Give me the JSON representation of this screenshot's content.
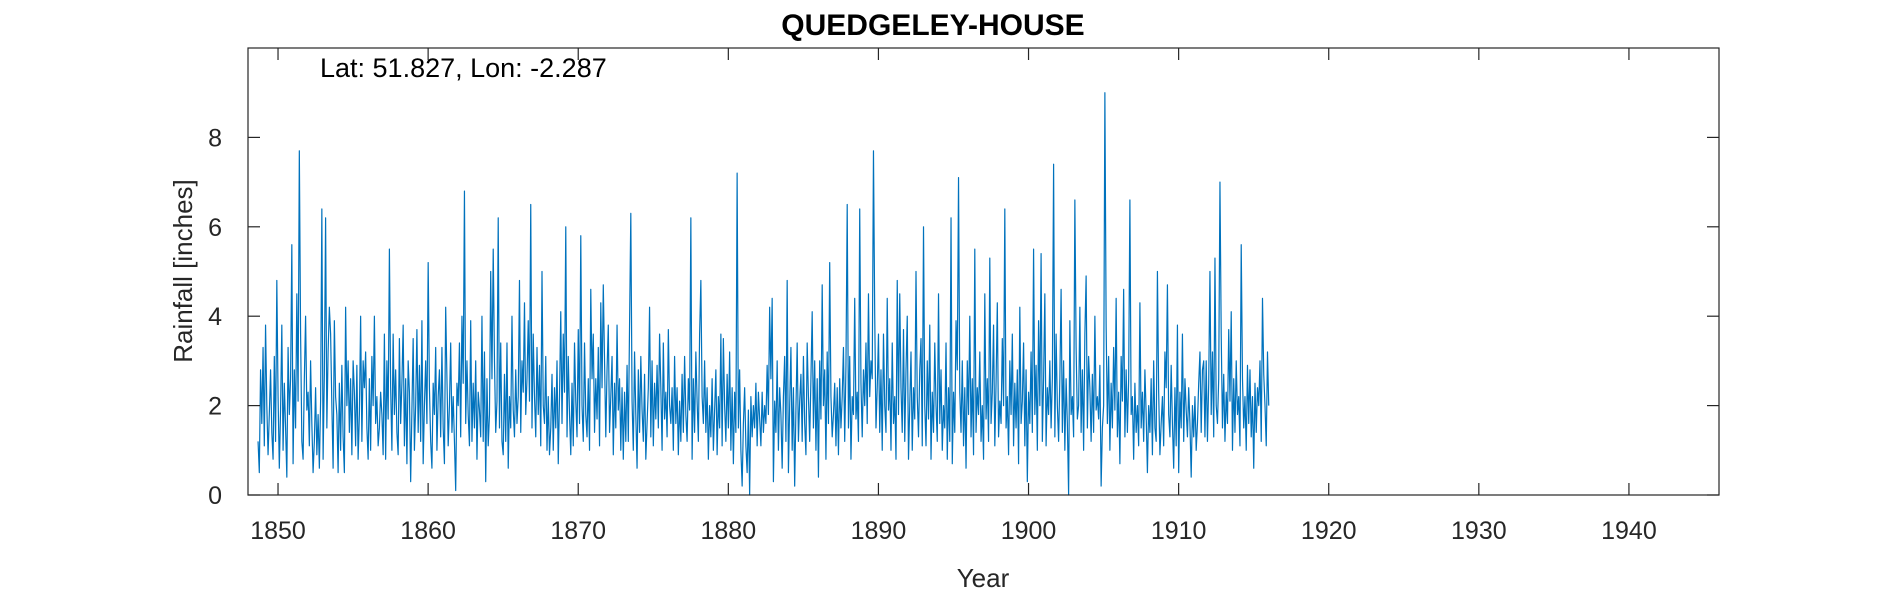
{
  "chart_data": {
    "type": "line",
    "title": "QUEDGELEY-HOUSE",
    "xlabel": "Year",
    "ylabel": "Rainfall [inches]",
    "annotation": "Lat: 51.827, Lon: -2.287",
    "xlim": [
      1848,
      1946
    ],
    "ylim": [
      0,
      10
    ],
    "xticks": [
      1850,
      1860,
      1870,
      1880,
      1890,
      1900,
      1910,
      1920,
      1930,
      1940
    ],
    "yticks": [
      0,
      2,
      4,
      6,
      8
    ],
    "grid": false,
    "colors": {
      "series": "#0072BD",
      "axes": "#262626"
    },
    "series": [
      {
        "start_year": 1848.67,
        "step": 0.0833333,
        "values": [
          1.2,
          0.5,
          2.8,
          1.6,
          3.3,
          1.1,
          3.8,
          2.0,
          0.9,
          1.8,
          2.8,
          1.4,
          0.8,
          3.1,
          1.2,
          4.8,
          2.2,
          0.6,
          1.9,
          3.8,
          1.0,
          2.5,
          1.5,
          0.4,
          3.3,
          1.8,
          2.6,
          5.6,
          0.7,
          2.8,
          1.5,
          4.5,
          2.1,
          7.7,
          3.6,
          1.2,
          0.8,
          2.6,
          4.0,
          1.9,
          2.3,
          1.1,
          3.0,
          1.6,
          0.5,
          1.2,
          2.4,
          0.9,
          1.8,
          0.6,
          2.1,
          6.4,
          0.8,
          2.7,
          6.2,
          1.5,
          3.2,
          4.2,
          3.6,
          2.0,
          0.6,
          3.9,
          2.2,
          1.8,
          0.5,
          2.5,
          1.0,
          2.9,
          1.3,
          0.5,
          4.2,
          2.0,
          3.0,
          1.4,
          2.6,
          0.9,
          3.0,
          2.3,
          1.1,
          2.9,
          0.8,
          1.8,
          4.0,
          1.2,
          3.0,
          2.4,
          3.2,
          1.5,
          0.8,
          2.6,
          1.0,
          3.1,
          2.0,
          4.0,
          1.6,
          2.2,
          1.1,
          1.5,
          2.3,
          1.8,
          0.9,
          3.6,
          0.8,
          3.0,
          1.7,
          5.5,
          2.4,
          1.0,
          3.6,
          1.8,
          2.8,
          1.4,
          0.9,
          3.5,
          1.6,
          2.5,
          3.8,
          1.1,
          2.6,
          0.7,
          3.0,
          2.3,
          0.3,
          1.9,
          3.5,
          1.0,
          2.0,
          3.7,
          1.4,
          2.9,
          1.2,
          3.9,
          0.7,
          2.0,
          3.0,
          1.6,
          5.2,
          2.4,
          1.2,
          0.6,
          2.5,
          1.8,
          3.3,
          1.0,
          2.2,
          2.8,
          1.3,
          3.3,
          1.5,
          0.7,
          4.2,
          2.6,
          1.1,
          2.0,
          3.4,
          1.4,
          2.2,
          1.2,
          0.1,
          2.5,
          2.0,
          3.4,
          1.3,
          4.0,
          2.5,
          6.8,
          1.6,
          3.0,
          1.8,
          1.1,
          3.9,
          1.2,
          2.5,
          1.5,
          3.0,
          0.8,
          2.3,
          1.9,
          1.3,
          4.0,
          1.2,
          3.2,
          0.3,
          2.6,
          1.1,
          1.8,
          5.0,
          2.6,
          5.5,
          3.0,
          1.4,
          2.1,
          6.2,
          1.5,
          3.4,
          1.2,
          0.9,
          2.7,
          1.2,
          3.4,
          0.6,
          2.2,
          1.5,
          4.0,
          1.9,
          1.3,
          2.8,
          1.6,
          2.2,
          4.8,
          1.4,
          3.0,
          2.3,
          4.3,
          1.8,
          2.6,
          3.9,
          2.1,
          6.5,
          1.5,
          3.6,
          2.2,
          1.3,
          3.3,
          1.8,
          2.9,
          1.1,
          5.0,
          2.0,
          1.6,
          3.1,
          1.0,
          2.2,
          0.9,
          1.5,
          2.7,
          1.0,
          2.4,
          1.5,
          3.0,
          0.7,
          2.2,
          4.1,
          1.6,
          3.6,
          2.3,
          6.0,
          1.3,
          3.1,
          1.8,
          0.9,
          2.5,
          1.1,
          3.4,
          2.1,
          1.3,
          3.7,
          1.6,
          5.8,
          2.0,
          1.2,
          3.4,
          1.8,
          1.3,
          2.6,
          1.0,
          4.6,
          2.6,
          3.6,
          1.4,
          2.6,
          1.7,
          3.3,
          1.1,
          4.3,
          2.4,
          4.7,
          3.0,
          1.3,
          2.8,
          3.8,
          1.4,
          2.2,
          3.1,
          0.9,
          2.5,
          1.5,
          3.8,
          1.9,
          2.6,
          1.0,
          2.4,
          0.8,
          2.3,
          1.2,
          2.9,
          1.2,
          3.8,
          6.3,
          2.1,
          1.0,
          3.2,
          1.8,
          0.6,
          2.8,
          1.4,
          3.1,
          1.9,
          1.2,
          2.7,
          0.8,
          1.6,
          2.4,
          4.2,
          1.3,
          3.0,
          1.1,
          2.5,
          1.7,
          2.9,
          1.5,
          3.6,
          2.4,
          1.0,
          3.4,
          1.7,
          2.3,
          1.3,
          3.7,
          2.0,
          1.6,
          2.4,
          1.0,
          3.1,
          1.6,
          2.4,
          0.9,
          2.1,
          1.2,
          2.7,
          1.4,
          3.1,
          1.8,
          1.2,
          2.6,
          1.9,
          6.2,
          0.8,
          2.6,
          1.4,
          3.2,
          2.1,
          1.2,
          3.6,
          4.8,
          2.2,
          1.6,
          3.0,
          1.4,
          2.4,
          0.8,
          2.0,
          1.3,
          2.6,
          1.0,
          1.9,
          2.8,
          0.9,
          2.2,
          1.5,
          3.6,
          1.1,
          3.5,
          2.0,
          1.2,
          2.7,
          1.5,
          3.2,
          1.0,
          2.4,
          0.7,
          2.3,
          1.4,
          7.2,
          1.5,
          2.8,
          1.0,
          0.2,
          1.6,
          2.4,
          1.1,
          0.5,
          1.9,
          0.0,
          2.2,
          1.3,
          2.0,
          1.5,
          2.5,
          1.1,
          2.3,
          1.7,
          1.1,
          2.3,
          1.4,
          2.0,
          1.6,
          2.9,
          1.8,
          4.2,
          2.6,
          4.4,
          0.3,
          2.1,
          1.4,
          3.0,
          1.0,
          2.4,
          1.8,
          0.6,
          2.2,
          3.1,
          1.2,
          4.8,
          0.5,
          2.0,
          3.3,
          1.0,
          2.4,
          0.2,
          1.9,
          3.4,
          1.2,
          2.1,
          2.7,
          1.2,
          3.1,
          1.6,
          0.9,
          3.4,
          2.2,
          1.2,
          2.6,
          4.1,
          1.5,
          3.0,
          1.0,
          2.6,
          0.4,
          3.0,
          1.7,
          4.7,
          2.0,
          2.8,
          0.8,
          3.2,
          1.6,
          5.2,
          2.2,
          1.3,
          1.8,
          2.5,
          1.1,
          2.4,
          0.9,
          2.6,
          1.5,
          2.2,
          3.3,
          1.2,
          2.9,
          6.5,
          1.5,
          3.1,
          0.8,
          2.2,
          1.8,
          4.4,
          1.7,
          2.3,
          1.2,
          6.4,
          2.5,
          1.3,
          2.8,
          2.0,
          3.4,
          1.6,
          4.5,
          2.2,
          3.0,
          2.6,
          7.7,
          4.0,
          1.5,
          2.4,
          3.6,
          1.4,
          2.8,
          1.0,
          3.6,
          2.0,
          1.4,
          4.4,
          1.9,
          2.6,
          1.0,
          3.4,
          1.6,
          2.2,
          0.8,
          4.8,
          1.8,
          4.5,
          2.4,
          1.4,
          3.7,
          1.2,
          2.8,
          4.0,
          0.8,
          2.0,
          3.2,
          1.0,
          2.4,
          1.7,
          5.0,
          2.2,
          1.3,
          2.8,
          3.5,
          1.1,
          6.0,
          2.0,
          1.1,
          3.0,
          1.7,
          3.8,
          0.8,
          2.3,
          1.4,
          3.4,
          2.0,
          1.2,
          4.5,
          1.6,
          2.8,
          1.0,
          2.0,
          1.5,
          3.4,
          0.8,
          2.4,
          1.2,
          6.2,
          0.7,
          2.3,
          1.4,
          3.9,
          2.8,
          7.1,
          2.3,
          1.4,
          3.0,
          1.1,
          2.4,
          0.6,
          3.0,
          1.8,
          4.0,
          1.3,
          2.6,
          0.9,
          5.5,
          1.4,
          2.4,
          1.8,
          3.2,
          1.2,
          2.0,
          0.8,
          4.5,
          1.7,
          2.6,
          1.2,
          5.3,
          1.6,
          2.3,
          3.8,
          1.1,
          2.5,
          4.3,
          1.3,
          2.1,
          1.6,
          3.5,
          2.0,
          6.4,
          1.5,
          2.2,
          0.9,
          3.0,
          1.8,
          3.6,
          1.1,
          2.5,
          1.5,
          2.8,
          0.7,
          4.2,
          1.6,
          2.1,
          3.4,
          1.1,
          2.8,
          0.3,
          2.3,
          1.6,
          3.2,
          1.4,
          5.5,
          1.8,
          2.9,
          1.0,
          3.9,
          2.0,
          5.4,
          1.2,
          2.6,
          4.5,
          1.1,
          2.4,
          1.8,
          3.0,
          1.5,
          2.6,
          7.4,
          1.3,
          3.6,
          2.0,
          1.2,
          2.6,
          4.6,
          1.4,
          3.0,
          1.0,
          2.6,
          1.6,
          0.0,
          3.9,
          1.8,
          2.2,
          1.3,
          6.6,
          3.3,
          1.7,
          2.0,
          4.2,
          1.4,
          2.8,
          1.0,
          3.6,
          4.9,
          1.5,
          3.1,
          2.4,
          1.2,
          2.7,
          1.4,
          4.0,
          1.9,
          2.2,
          1.7,
          2.9,
          0.2,
          1.5,
          2.0,
          9.0,
          3.8,
          1.6,
          3.1,
          1.0,
          2.5,
          1.5,
          3.3,
          1.9,
          4.4,
          1.3,
          2.3,
          0.7,
          3.1,
          2.1,
          4.6,
          1.3,
          2.8,
          1.4,
          2.6,
          6.6,
          1.8,
          2.2,
          0.8,
          2.5,
          1.4,
          2.0,
          1.1,
          4.3,
          1.5,
          2.3,
          1.2,
          2.8,
          1.8,
          0.5,
          2.0,
          1.4,
          2.6,
          0.9,
          3.0,
          1.5,
          1.2,
          5.0,
          2.3,
          0.9,
          1.6,
          2.2,
          1.1,
          3.2,
          2.4,
          4.7,
          1.8,
          1.3,
          2.9,
          1.6,
          0.6,
          2.4,
          1.1,
          3.8,
          0.5,
          2.3,
          1.5,
          3.6,
          1.2,
          2.6,
          1.9,
          1.3,
          2.4,
          1.6,
          0.4,
          2.0,
          1.3,
          2.2,
          1.0,
          1.6,
          2.5,
          3.2,
          1.4,
          2.8,
          3.0,
          1.3,
          3.0,
          1.2,
          2.5,
          5.0,
          1.8,
          3.2,
          1.3,
          5.3,
          2.0,
          1.6,
          2.6,
          7.0,
          3.6,
          1.5,
          2.7,
          1.2,
          2.3,
          1.6,
          3.7,
          2.1,
          4.1,
          1.0,
          2.6,
          1.4,
          3.0,
          1.8,
          2.2,
          1.1,
          5.6,
          2.6,
          1.5,
          2.2,
          1.0,
          2.9,
          1.6,
          2.8,
          1.3,
          2.2,
          0.6,
          2.5,
          1.4,
          2.4,
          2.0,
          3.0,
          1.2,
          4.4,
          2.7,
          2.0,
          1.1,
          3.2,
          2.0
        ]
      }
    ]
  }
}
